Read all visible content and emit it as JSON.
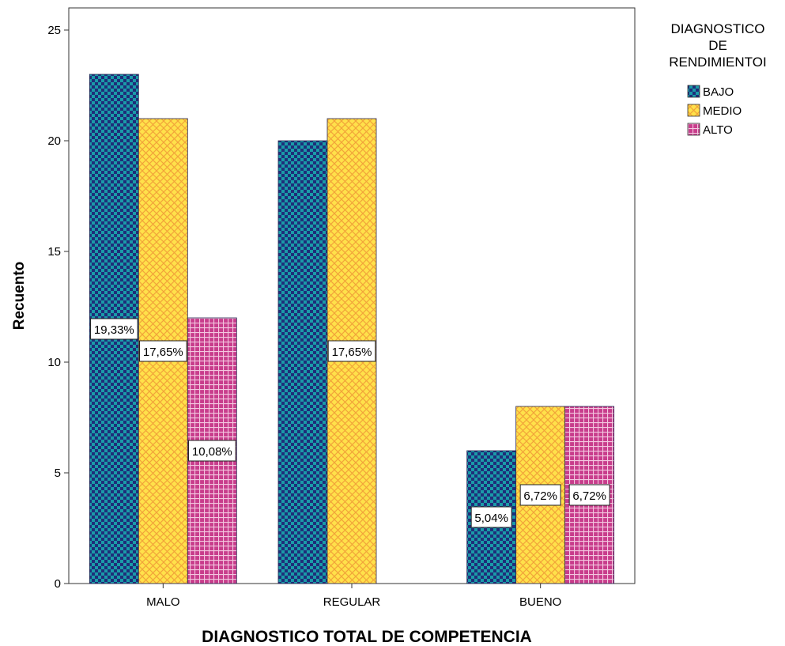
{
  "chart_data": {
    "type": "bar",
    "xlabel": "DIAGNOSTICO TOTAL DE COMPETENCIA",
    "ylabel": "Recuento",
    "categories": [
      "MALO",
      "REGULAR",
      "BUENO"
    ],
    "ylim": [
      0,
      26
    ],
    "yticks": [
      0,
      5,
      10,
      15,
      20,
      25
    ],
    "ytick_labels": [
      "0",
      "5",
      "10",
      "15",
      "20",
      "25"
    ],
    "grid": false,
    "legend": {
      "title_lines": [
        "DIAGNOSTICO",
        "DE",
        "RENDIMIENTOI"
      ],
      "placement": "right"
    },
    "series": [
      {
        "name": "BAJO",
        "color": "#1a9ba8",
        "pattern_color": "#1f2e7a",
        "pattern": "checker",
        "values": [
          23,
          20,
          6
        ],
        "labels": [
          "19,33%",
          "",
          "5,04%"
        ]
      },
      {
        "name": "MEDIO",
        "color": "#ffe14a",
        "pattern_color": "#f2a43a",
        "pattern": "crosshatch",
        "values": [
          21,
          21,
          8
        ],
        "labels": [
          "17,65%",
          "17,65%",
          "6,72%"
        ]
      },
      {
        "name": "ALTO",
        "color": "#c83d8c",
        "pattern_color": "#f3c6df",
        "pattern": "grid",
        "values": [
          12,
          0,
          8
        ],
        "labels": [
          "10,08%",
          "",
          "6,72%"
        ]
      }
    ]
  }
}
